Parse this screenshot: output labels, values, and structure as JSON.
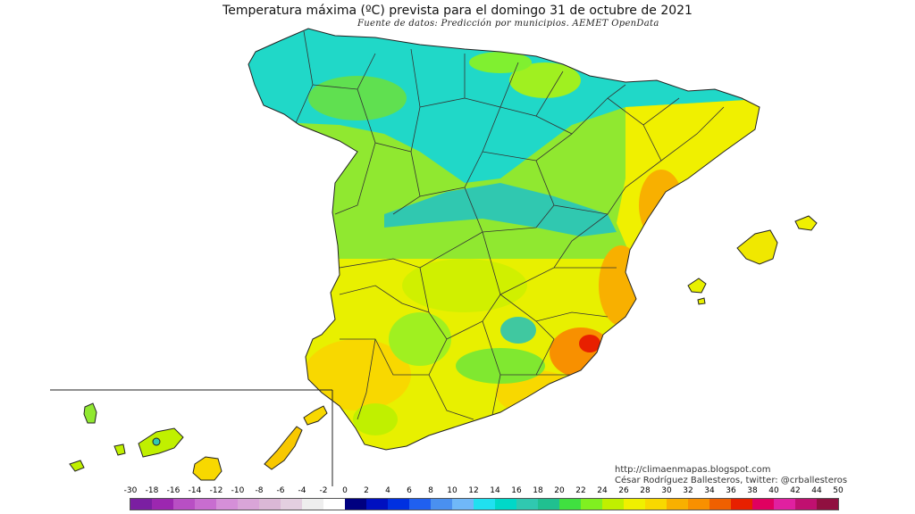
{
  "header": {
    "title": "Temperatura máxima (ºC) prevista para el domingo 31 de octubre de 2021",
    "source": "Fuente de datos: Predicción por municipios. AEMET OpenData"
  },
  "credits": {
    "blog": "http://climaenmapas.blogspot.com",
    "author": "César Rodríguez Ballesteros, twitter: @crballesteros"
  },
  "legend": {
    "ticks": [
      "-30",
      "-18",
      "-16",
      "-14",
      "-12",
      "-10",
      "-8",
      "-6",
      "-4",
      "-2",
      "0",
      "2",
      "4",
      "6",
      "8",
      "10",
      "12",
      "14",
      "16",
      "18",
      "20",
      "22",
      "24",
      "26",
      "28",
      "30",
      "32",
      "34",
      "36",
      "38",
      "40",
      "42",
      "44",
      "50"
    ],
    "colors": [
      "#7b1fa2",
      "#9c27b0",
      "#b84fc4",
      "#c86dd0",
      "#d58fd8",
      "#d9a5d8",
      "#dbb8d6",
      "#e3cfe0",
      "#eeeeee",
      "#ffffff",
      "#000080",
      "#0010c0",
      "#0030e0",
      "#2060f0",
      "#4a90f0",
      "#70b8f8",
      "#20e0f0",
      "#00d8c8",
      "#30c8b0",
      "#20c090",
      "#40e040",
      "#80f020",
      "#c0f000",
      "#f0f000",
      "#f8d800",
      "#f8b000",
      "#f89000",
      "#f06000",
      "#e82000",
      "#e00060",
      "#e020a0",
      "#c01070",
      "#901040"
    ]
  },
  "map": {
    "regions": [
      "Península Ibérica",
      "Islas Baleares",
      "Islas Canarias"
    ]
  }
}
